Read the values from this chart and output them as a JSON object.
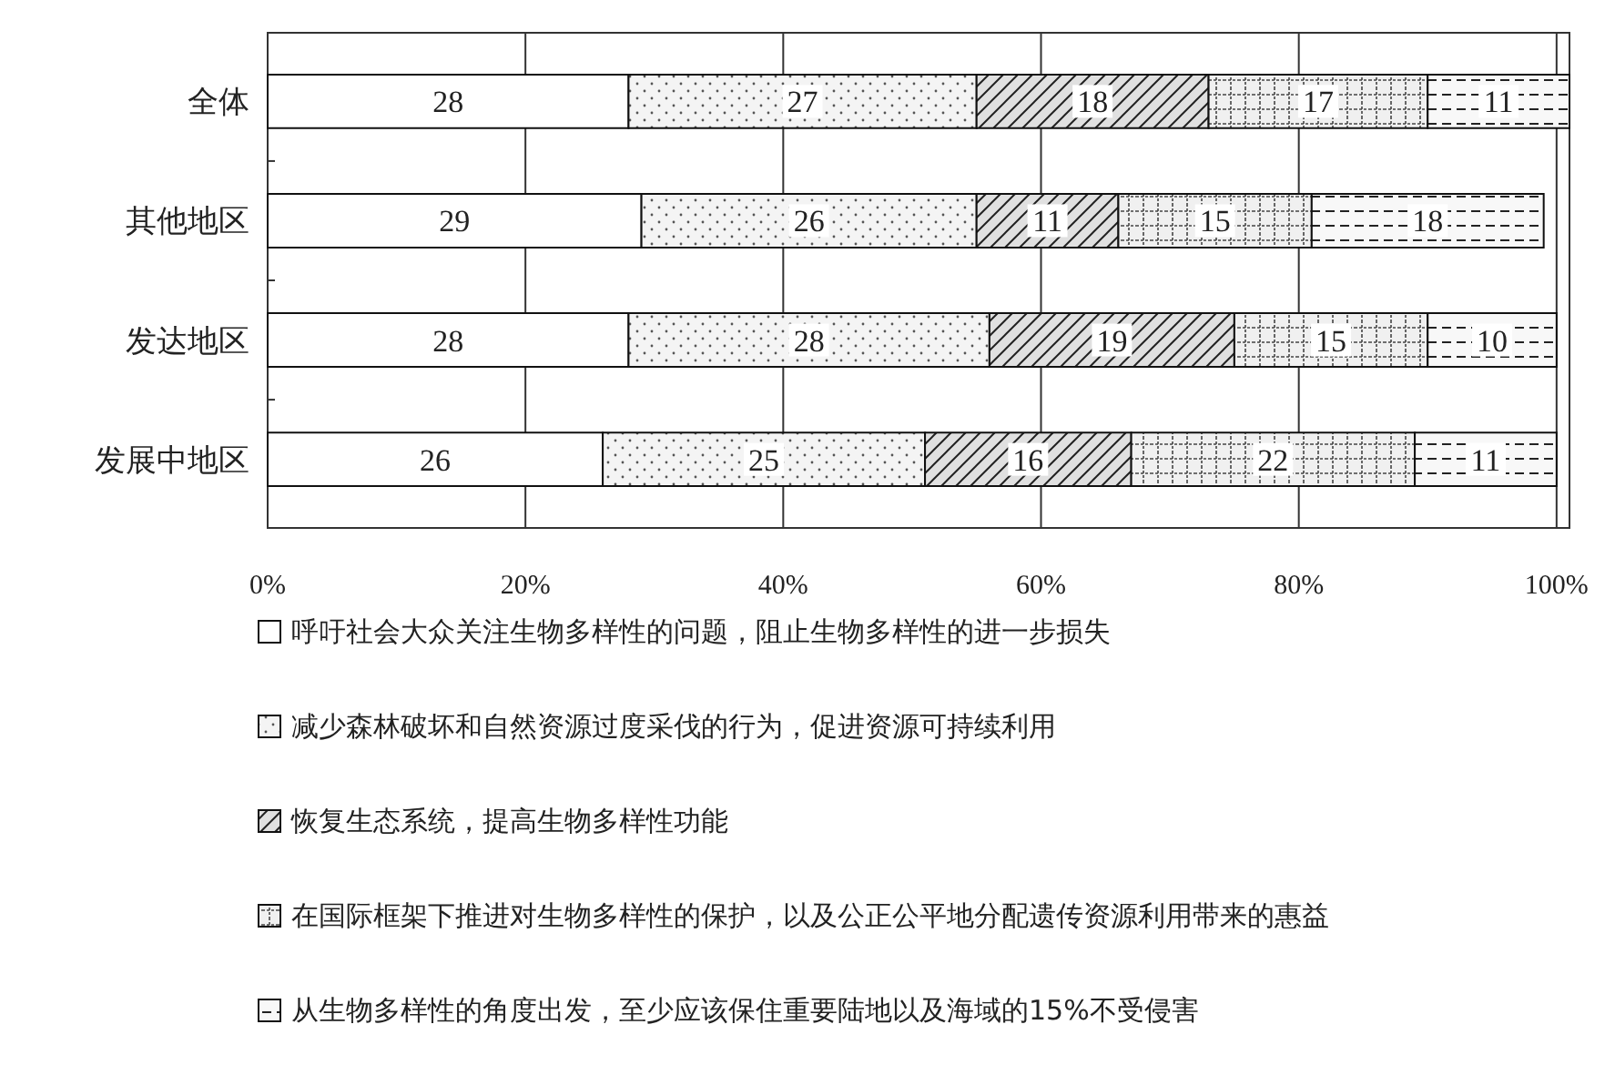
{
  "chart_data": {
    "type": "bar",
    "orientation": "horizontal",
    "stacked": true,
    "categories": [
      "全体",
      "其他地区",
      "发达地区",
      "发展中地区"
    ],
    "series": [
      {
        "name": "呼吁社会大众关注生物多样性的问题，阻止生物多样性的进一步损失",
        "color": "#ffffff",
        "values": [
          28,
          29,
          28,
          26
        ]
      },
      {
        "name": "减少森林破坏和自然资源过度采伐的行为，促进资源可持续利用",
        "color": "#f4f4f4",
        "values": [
          27,
          26,
          28,
          25
        ]
      },
      {
        "name": "恢复生态系统，提高生物多样性功能",
        "color": "#e0e0e0",
        "values": [
          18,
          11,
          19,
          16
        ]
      },
      {
        "name": "在国际框架下推进对生物多样性的保护，以及公正公平地分配遗传资源利用带来的惠益",
        "color": "#f0f0f0",
        "values": [
          17,
          15,
          15,
          22
        ]
      },
      {
        "name": "从生物多样性的角度出发，至少应该保住重要陆地以及海域的15%不受侵害",
        "color": "#f8f8f8",
        "values": [
          11,
          18,
          10,
          11
        ]
      }
    ],
    "xlim": [
      0,
      101
    ],
    "xticks": [
      {
        "value": 0,
        "label": "0%"
      },
      {
        "value": 20,
        "label": "20%"
      },
      {
        "value": 40,
        "label": "40%"
      },
      {
        "value": 60,
        "label": "60%"
      },
      {
        "value": 80,
        "label": "80%"
      },
      {
        "value": 100,
        "label": "100%"
      }
    ],
    "grid": "x",
    "data_labels": true,
    "legend": "bottom"
  }
}
